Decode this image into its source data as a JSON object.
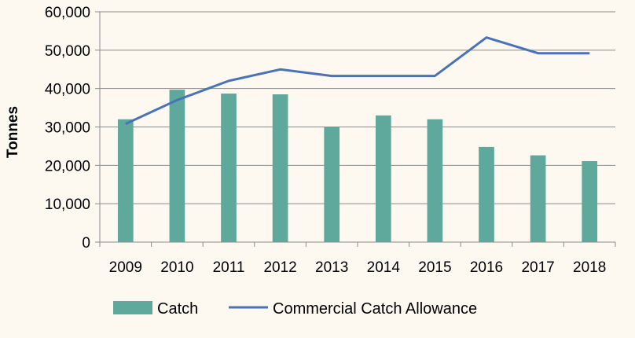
{
  "chart_data": {
    "type": "bar",
    "title": "",
    "xlabel": "",
    "ylabel": "Tonnes",
    "categories": [
      "2009",
      "2010",
      "2011",
      "2012",
      "2013",
      "2014",
      "2015",
      "2016",
      "2017",
      "2018"
    ],
    "ylim": [
      0,
      60000
    ],
    "yticks": [
      0,
      10000,
      20000,
      30000,
      40000,
      50000,
      60000
    ],
    "ytick_labels": [
      "0",
      "10,000",
      "20,000",
      "30,000",
      "40,000",
      "50,000",
      "60,000"
    ],
    "grid": true,
    "legend_position": "bottom",
    "series": [
      {
        "name": "Catch",
        "kind": "bar",
        "color": "#5fa89c",
        "values": [
          32000,
          39700,
          38700,
          38500,
          30000,
          33000,
          32000,
          24800,
          22600,
          21100
        ]
      },
      {
        "name": "Commercial Catch Allowance",
        "kind": "line",
        "color": "#4a72b8",
        "values": [
          30800,
          37000,
          42000,
          45000,
          43300,
          43300,
          43300,
          53300,
          49200,
          49200
        ]
      }
    ]
  }
}
